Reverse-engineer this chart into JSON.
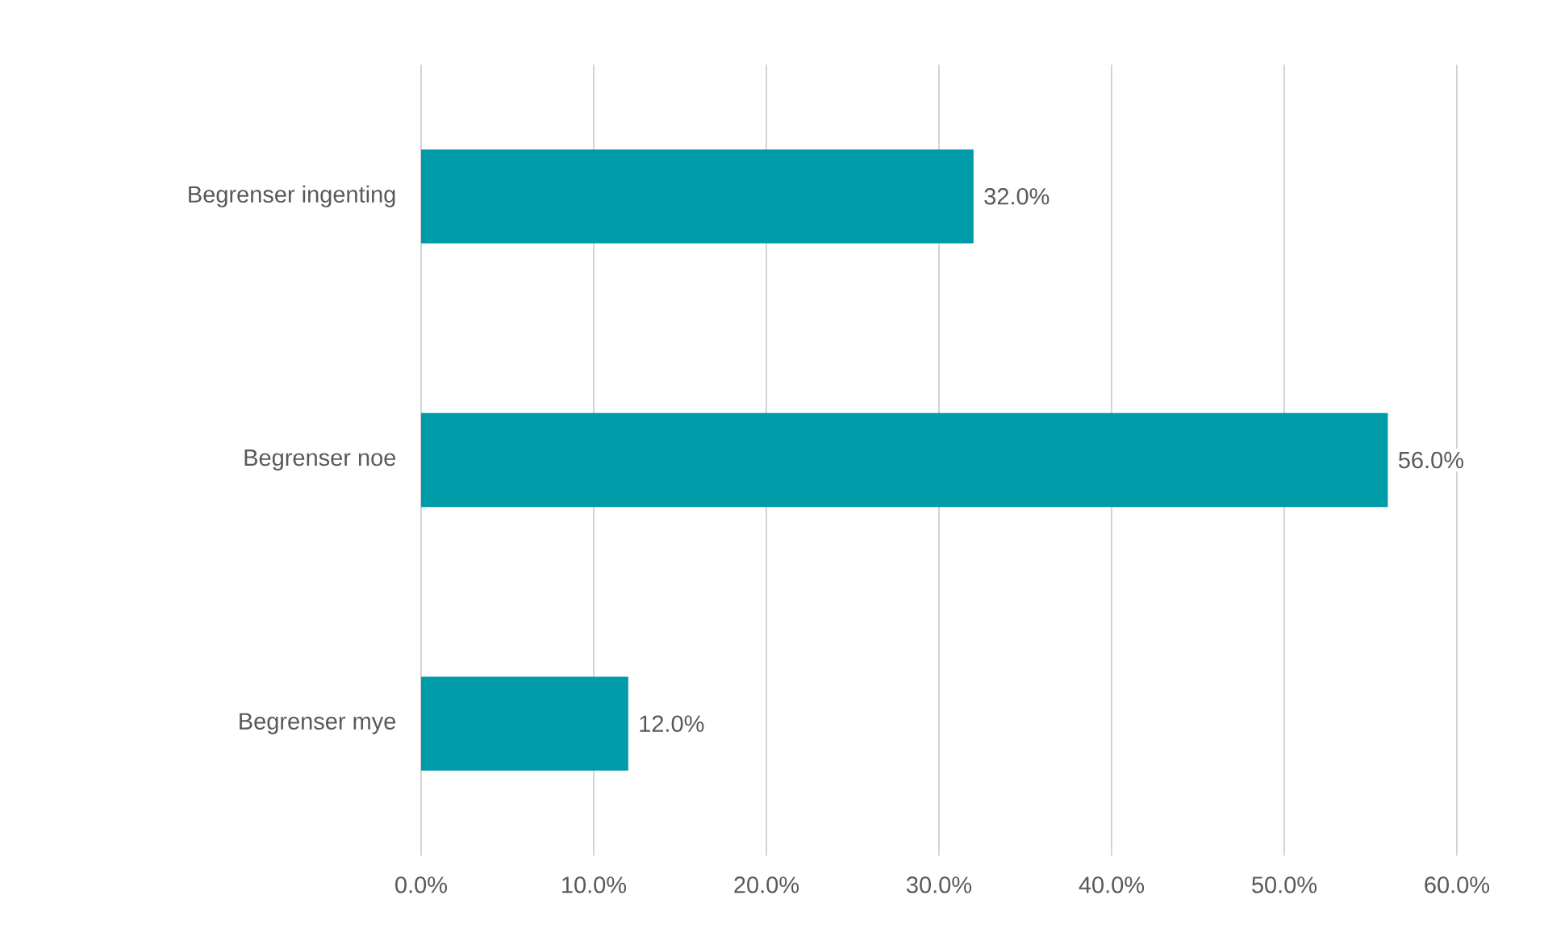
{
  "chart_data": {
    "type": "bar",
    "orientation": "horizontal",
    "categories": [
      "Begrenser ingenting",
      "Begrenser noe",
      "Begrenser mye"
    ],
    "values": [
      32,
      56,
      12
    ],
    "color": "#009ba9",
    "value_labels": [
      "32.0%",
      "56.0%",
      "12.0%"
    ],
    "xlim": [
      0,
      60
    ],
    "xticks": [
      {
        "value": 0,
        "label": "0.0%"
      },
      {
        "value": 10,
        "label": "10.0%"
      },
      {
        "value": 20,
        "label": "20.0%"
      },
      {
        "value": 30,
        "label": "30.0%"
      },
      {
        "value": 40,
        "label": "40.0%"
      },
      {
        "value": 50,
        "label": "50.0%"
      },
      {
        "value": 60,
        "label": "60.0%"
      }
    ],
    "grid": "x"
  }
}
